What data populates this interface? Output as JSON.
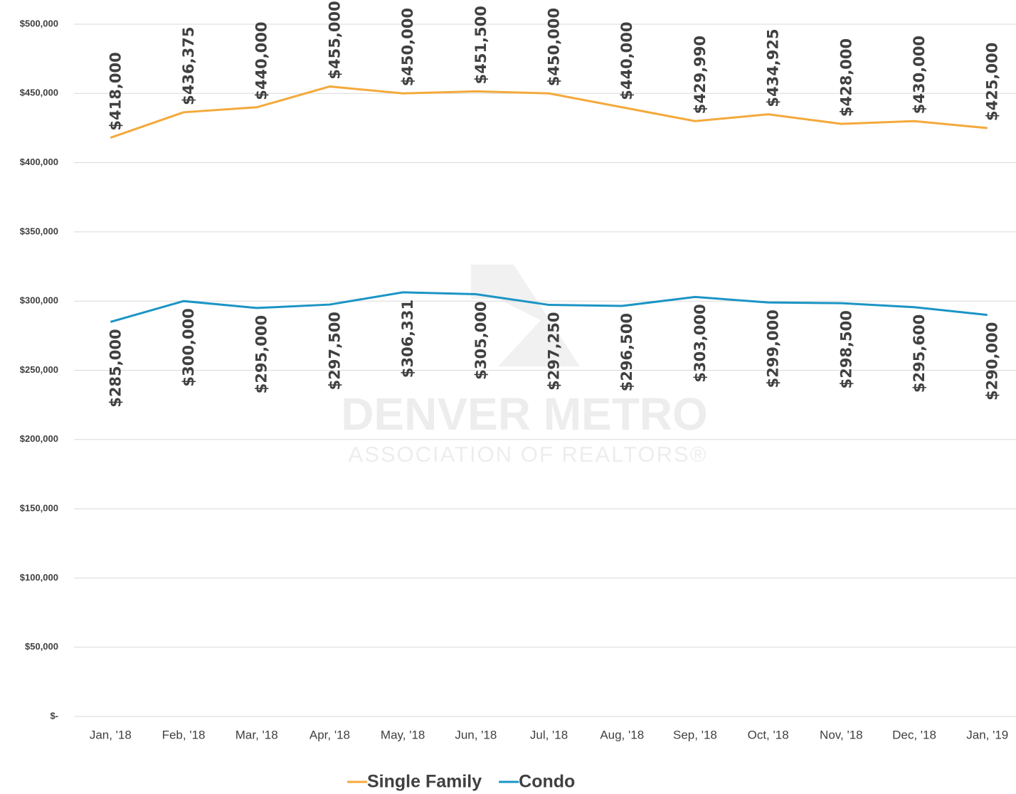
{
  "chart_data": {
    "type": "line",
    "watermark": [
      "DENVER METRO",
      "ASSOCIATION OF REALTORS®"
    ],
    "categories": [
      "Jan, '18",
      "Feb, '18",
      "Mar, '18",
      "Apr, '18",
      "May, '18",
      "Jun, '18",
      "Jul, '18",
      "Aug, '18",
      "Sep, '18",
      "Oct, '18",
      "Nov, '18",
      "Dec, '18",
      "Jan, '19"
    ],
    "series": [
      {
        "name": "Single Family",
        "color": "#f4a93b",
        "values": [
          418000,
          436375,
          440000,
          455000,
          450000,
          451500,
          450000,
          440000,
          429990,
          434925,
          428000,
          430000,
          425000
        ],
        "value_labels": [
          "$418,000",
          "$436,375",
          "$440,000",
          "$455,000",
          "$450,000",
          "$451,500",
          "$450,000",
          "$440,000",
          "$429,990",
          "$434,925",
          "$428,000",
          "$430,000",
          "$425,000"
        ]
      },
      {
        "name": "Condo",
        "color": "#1b95c5",
        "values": [
          285000,
          300000,
          295000,
          297500,
          306331,
          305000,
          297250,
          296500,
          303000,
          299000,
          298500,
          295600,
          290000
        ],
        "value_labels": [
          "$285,000",
          "$300,000",
          "$295,000",
          "$297,500",
          "$306,331",
          "$305,000",
          "$297,250",
          "$296,500",
          "$303,000",
          "$299,000",
          "$298,500",
          "$295,600",
          "$290,000"
        ]
      }
    ],
    "ylim": [
      0,
      500000
    ],
    "yticks": [
      {
        "value": 0,
        "label": "$-"
      },
      {
        "value": 50000,
        "label": "$50,000"
      },
      {
        "value": 100000,
        "label": "$100,000"
      },
      {
        "value": 150000,
        "label": "$150,000"
      },
      {
        "value": 200000,
        "label": "$200,000"
      },
      {
        "value": 250000,
        "label": "$250,000"
      },
      {
        "value": 300000,
        "label": "$300,000"
      },
      {
        "value": 350000,
        "label": "$350,000"
      },
      {
        "value": 400000,
        "label": "$400,000"
      },
      {
        "value": 450000,
        "label": "$450,000"
      },
      {
        "value": 500000,
        "label": "$500,000"
      }
    ],
    "grid": true,
    "legend": "bottom"
  }
}
